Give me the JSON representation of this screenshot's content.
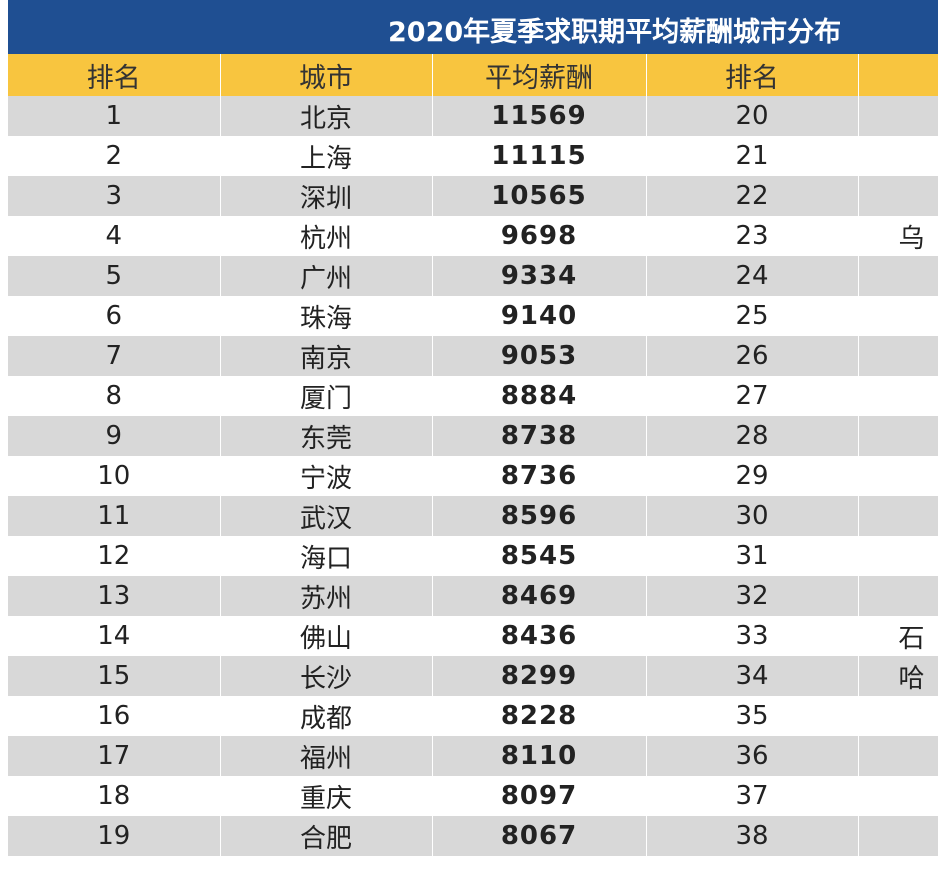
{
  "title": "2020年夏季求职期平均薪酬城市分布",
  "headers": [
    "排名",
    "城市",
    "平均薪酬",
    "排名",
    ""
  ],
  "rows": [
    {
      "rank": "1",
      "city": "北京",
      "salary": "11569",
      "rank2": "20",
      "city2": ""
    },
    {
      "rank": "2",
      "city": "上海",
      "salary": "11115",
      "rank2": "21",
      "city2": ""
    },
    {
      "rank": "3",
      "city": "深圳",
      "salary": "10565",
      "rank2": "22",
      "city2": ""
    },
    {
      "rank": "4",
      "city": "杭州",
      "salary": "9698",
      "rank2": "23",
      "city2": "乌"
    },
    {
      "rank": "5",
      "city": "广州",
      "salary": "9334",
      "rank2": "24",
      "city2": ""
    },
    {
      "rank": "6",
      "city": "珠海",
      "salary": "9140",
      "rank2": "25",
      "city2": ""
    },
    {
      "rank": "7",
      "city": "南京",
      "salary": "9053",
      "rank2": "26",
      "city2": ""
    },
    {
      "rank": "8",
      "city": "厦门",
      "salary": "8884",
      "rank2": "27",
      "city2": ""
    },
    {
      "rank": "9",
      "city": "东莞",
      "salary": "8738",
      "rank2": "28",
      "city2": ""
    },
    {
      "rank": "10",
      "city": "宁波",
      "salary": "8736",
      "rank2": "29",
      "city2": ""
    },
    {
      "rank": "11",
      "city": "武汉",
      "salary": "8596",
      "rank2": "30",
      "city2": ""
    },
    {
      "rank": "12",
      "city": "海口",
      "salary": "8545",
      "rank2": "31",
      "city2": ""
    },
    {
      "rank": "13",
      "city": "苏州",
      "salary": "8469",
      "rank2": "32",
      "city2": ""
    },
    {
      "rank": "14",
      "city": "佛山",
      "salary": "8436",
      "rank2": "33",
      "city2": "石"
    },
    {
      "rank": "15",
      "city": "长沙",
      "salary": "8299",
      "rank2": "34",
      "city2": "哈"
    },
    {
      "rank": "16",
      "city": "成都",
      "salary": "8228",
      "rank2": "35",
      "city2": ""
    },
    {
      "rank": "17",
      "city": "福州",
      "salary": "8110",
      "rank2": "36",
      "city2": ""
    },
    {
      "rank": "18",
      "city": "重庆",
      "salary": "8097",
      "rank2": "37",
      "city2": ""
    },
    {
      "rank": "19",
      "city": "合肥",
      "salary": "8067",
      "rank2": "38",
      "city2": ""
    }
  ]
}
